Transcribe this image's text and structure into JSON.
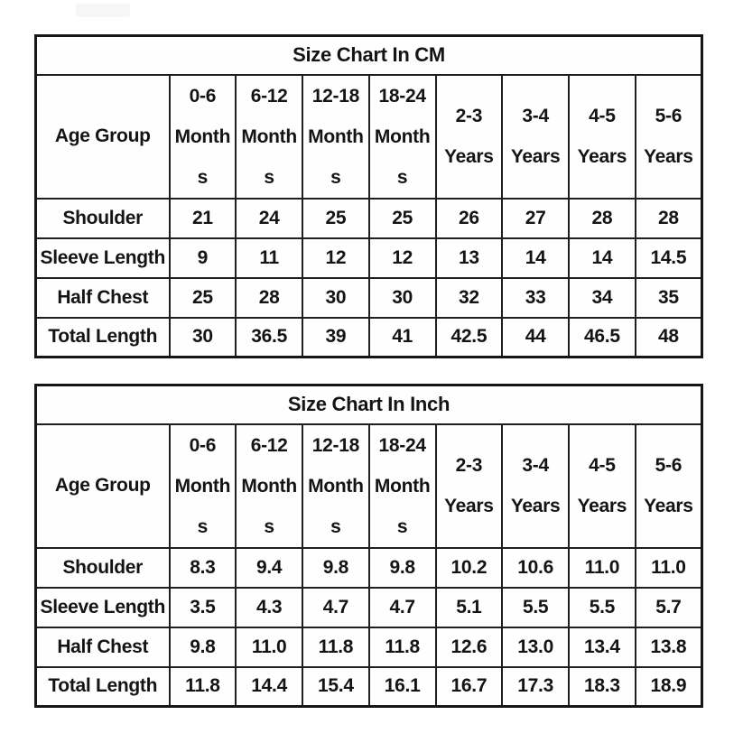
{
  "colors": {
    "text": "#141414",
    "border": "#1f1f1f",
    "background": "#ffffff"
  },
  "tables": [
    {
      "title": "Size Chart In CM",
      "age_group_label": "Age Group",
      "columns": [
        {
          "lines": [
            "0-6",
            "Month",
            "s"
          ]
        },
        {
          "lines": [
            "6-12",
            "Month",
            "s"
          ]
        },
        {
          "lines": [
            "12-18",
            "Month",
            "s"
          ]
        },
        {
          "lines": [
            "18-24",
            "Month",
            "s"
          ]
        },
        {
          "lines": [
            "2-3",
            "Years"
          ]
        },
        {
          "lines": [
            "3-4",
            "Years"
          ]
        },
        {
          "lines": [
            "4-5",
            "Years"
          ]
        },
        {
          "lines": [
            "5-6",
            "Years"
          ]
        }
      ],
      "rows": [
        {
          "label": "Shoulder",
          "values": [
            "21",
            "24",
            "25",
            "25",
            "26",
            "27",
            "28",
            "28"
          ]
        },
        {
          "label": "Sleeve Length",
          "values": [
            "9",
            "11",
            "12",
            "12",
            "13",
            "14",
            "14",
            "14.5"
          ]
        },
        {
          "label": "Half Chest",
          "values": [
            "25",
            "28",
            "30",
            "30",
            "32",
            "33",
            "34",
            "35"
          ]
        },
        {
          "label": "Total Length",
          "values": [
            "30",
            "36.5",
            "39",
            "41",
            "42.5",
            "44",
            "46.5",
            "48"
          ]
        }
      ]
    },
    {
      "title": "Size Chart In Inch",
      "age_group_label": "Age Group",
      "columns": [
        {
          "lines": [
            "0-6",
            "Month",
            "s"
          ]
        },
        {
          "lines": [
            "6-12",
            "Month",
            "s"
          ]
        },
        {
          "lines": [
            "12-18",
            "Month",
            "s"
          ]
        },
        {
          "lines": [
            "18-24",
            "Month",
            "s"
          ]
        },
        {
          "lines": [
            "2-3",
            "Years"
          ]
        },
        {
          "lines": [
            "3-4",
            "Years"
          ]
        },
        {
          "lines": [
            "4-5",
            "Years"
          ]
        },
        {
          "lines": [
            "5-6",
            "Years"
          ]
        }
      ],
      "rows": [
        {
          "label": "Shoulder",
          "values": [
            "8.3",
            "9.4",
            "9.8",
            "9.8",
            "10.2",
            "10.6",
            "11.0",
            "11.0"
          ]
        },
        {
          "label": "Sleeve Length",
          "values": [
            "3.5",
            "4.3",
            "4.7",
            "4.7",
            "5.1",
            "5.5",
            "5.5",
            "5.7"
          ]
        },
        {
          "label": "Half Chest",
          "values": [
            "9.8",
            "11.0",
            "11.8",
            "11.8",
            "12.6",
            "13.0",
            "13.4",
            "13.8"
          ]
        },
        {
          "label": "Total Length",
          "values": [
            "11.8",
            "14.4",
            "15.4",
            "16.1",
            "16.7",
            "17.3",
            "18.3",
            "18.9"
          ]
        }
      ]
    }
  ]
}
